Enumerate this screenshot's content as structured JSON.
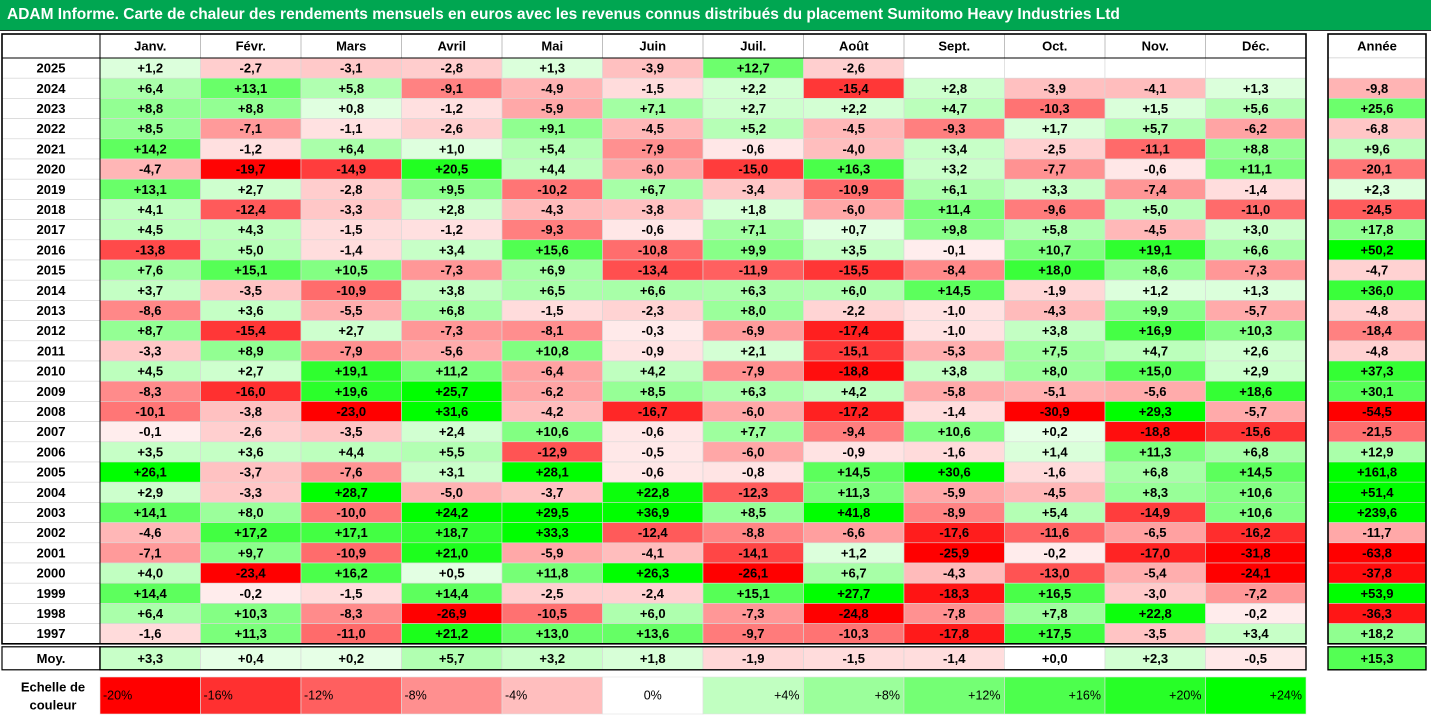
{
  "title": "ADAM Informe. Carte de chaleur des rendements mensuels en euros avec les revenus connus distribués du placement Sumitomo Heavy Industries Ltd",
  "colors": {
    "title_bg": "#00a651",
    "title_fg": "#ffffff",
    "negative_strong": "#ff0000",
    "positive_strong": "#00ff00",
    "neutral": "#ffffff"
  },
  "chart_data": {
    "type": "heatmap",
    "months": [
      "Janv.",
      "Févr.",
      "Mars",
      "Avril",
      "Mai",
      "Juin",
      "Juil.",
      "Août",
      "Sept.",
      "Oct.",
      "Nov.",
      "Déc."
    ],
    "year_header": "Année",
    "rows": [
      {
        "year": "2025",
        "values": [
          "+1,2",
          "-2,7",
          "-3,1",
          "-2,8",
          "+1,3",
          "-3,9",
          "+12,7",
          "-2,6",
          "",
          "",
          "",
          ""
        ],
        "annual": ""
      },
      {
        "year": "2024",
        "values": [
          "+6,4",
          "+13,1",
          "+5,8",
          "-9,1",
          "-4,9",
          "-1,5",
          "+2,2",
          "-15,4",
          "+2,8",
          "-3,9",
          "-4,1",
          "+1,3"
        ],
        "annual": "-9,8"
      },
      {
        "year": "2023",
        "values": [
          "+8,8",
          "+8,8",
          "+0,8",
          "-1,2",
          "-5,9",
          "+7,1",
          "+2,7",
          "+2,2",
          "+4,7",
          "-10,3",
          "+1,5",
          "+5,6"
        ],
        "annual": "+25,6"
      },
      {
        "year": "2022",
        "values": [
          "+8,5",
          "-7,1",
          "-1,1",
          "-2,6",
          "+9,1",
          "-4,5",
          "+5,2",
          "-4,5",
          "-9,3",
          "+1,7",
          "+5,7",
          "-6,2"
        ],
        "annual": "-6,8"
      },
      {
        "year": "2021",
        "values": [
          "+14,2",
          "-1,2",
          "+6,4",
          "+1,0",
          "+5,4",
          "-7,9",
          "-0,6",
          "-4,0",
          "+3,4",
          "-2,5",
          "-11,1",
          "+8,8"
        ],
        "annual": "+9,6"
      },
      {
        "year": "2020",
        "values": [
          "-4,7",
          "-19,7",
          "-14,9",
          "+20,5",
          "+4,4",
          "-6,0",
          "-15,0",
          "+16,3",
          "+3,2",
          "-7,7",
          "-0,6",
          "+11,1"
        ],
        "annual": "-20,1"
      },
      {
        "year": "2019",
        "values": [
          "+13,1",
          "+2,7",
          "-2,8",
          "+9,5",
          "-10,2",
          "+6,7",
          "-3,4",
          "-10,9",
          "+6,1",
          "+3,3",
          "-7,4",
          "-1,4"
        ],
        "annual": "+2,3"
      },
      {
        "year": "2018",
        "values": [
          "+4,1",
          "-12,4",
          "-3,3",
          "+2,8",
          "-4,3",
          "-3,8",
          "+1,8",
          "-6,0",
          "+11,4",
          "-9,6",
          "+5,0",
          "-11,0"
        ],
        "annual": "-24,5"
      },
      {
        "year": "2017",
        "values": [
          "+4,5",
          "+4,3",
          "-1,5",
          "-1,2",
          "-9,3",
          "-0,6",
          "+7,1",
          "+0,7",
          "+9,8",
          "+5,8",
          "-4,5",
          "+3,0"
        ],
        "annual": "+17,8"
      },
      {
        "year": "2016",
        "values": [
          "-13,8",
          "+5,0",
          "-1,4",
          "+3,4",
          "+15,6",
          "-10,8",
          "+9,9",
          "+3,5",
          "-0,1",
          "+10,7",
          "+19,1",
          "+6,6"
        ],
        "annual": "+50,2"
      },
      {
        "year": "2015",
        "values": [
          "+7,6",
          "+15,1",
          "+10,5",
          "-7,3",
          "+6,9",
          "-13,4",
          "-11,9",
          "-15,5",
          "-8,4",
          "+18,0",
          "+8,6",
          "-7,3"
        ],
        "annual": "-4,7"
      },
      {
        "year": "2014",
        "values": [
          "+3,7",
          "-3,5",
          "-10,9",
          "+3,8",
          "+6,5",
          "+6,6",
          "+6,3",
          "+6,0",
          "+14,5",
          "-1,9",
          "+1,2",
          "+1,3"
        ],
        "annual": "+36,0"
      },
      {
        "year": "2013",
        "values": [
          "-8,6",
          "+3,6",
          "-5,5",
          "+6,8",
          "-1,5",
          "-2,3",
          "+8,0",
          "-2,2",
          "-1,0",
          "-4,3",
          "+9,9",
          "-5,7"
        ],
        "annual": "-4,8"
      },
      {
        "year": "2012",
        "values": [
          "+8,7",
          "-15,4",
          "+2,7",
          "-7,3",
          "-8,1",
          "-0,3",
          "-6,9",
          "-17,4",
          "-1,0",
          "+3,8",
          "+16,9",
          "+10,3"
        ],
        "annual": "-18,4"
      },
      {
        "year": "2011",
        "values": [
          "-3,3",
          "+8,9",
          "-7,9",
          "-5,6",
          "+10,8",
          "-0,9",
          "+2,1",
          "-15,1",
          "-5,3",
          "+7,5",
          "+4,7",
          "+2,6"
        ],
        "annual": "-4,8"
      },
      {
        "year": "2010",
        "values": [
          "+4,5",
          "+2,7",
          "+19,1",
          "+11,2",
          "-6,4",
          "+4,2",
          "-7,9",
          "-18,8",
          "+3,8",
          "+8,0",
          "+15,0",
          "+2,9"
        ],
        "annual": "+37,3"
      },
      {
        "year": "2009",
        "values": [
          "-8,3",
          "-16,0",
          "+19,6",
          "+25,7",
          "-6,2",
          "+8,5",
          "+6,3",
          "+4,2",
          "-5,8",
          "-5,1",
          "-5,6",
          "+18,6"
        ],
        "annual": "+30,1"
      },
      {
        "year": "2008",
        "values": [
          "-10,1",
          "-3,8",
          "-23,0",
          "+31,6",
          "-4,2",
          "-16,7",
          "-6,0",
          "-17,2",
          "-1,4",
          "-30,9",
          "+29,3",
          "-5,7"
        ],
        "annual": "-54,5"
      },
      {
        "year": "2007",
        "values": [
          "-0,1",
          "-2,6",
          "-3,5",
          "+2,4",
          "+10,6",
          "-0,6",
          "+7,7",
          "-9,4",
          "+10,6",
          "+0,2",
          "-18,8",
          "-15,6"
        ],
        "annual": "-21,5"
      },
      {
        "year": "2006",
        "values": [
          "+3,5",
          "+3,6",
          "+4,4",
          "+5,5",
          "-12,9",
          "-0,5",
          "-6,0",
          "-0,9",
          "-1,6",
          "+1,4",
          "+11,3",
          "+6,8"
        ],
        "annual": "+12,9"
      },
      {
        "year": "2005",
        "values": [
          "+26,1",
          "-3,7",
          "-7,6",
          "+3,1",
          "+28,1",
          "-0,6",
          "-0,8",
          "+14,5",
          "+30,6",
          "-1,6",
          "+6,8",
          "+14,5"
        ],
        "annual": "+161,8"
      },
      {
        "year": "2004",
        "values": [
          "+2,9",
          "-3,3",
          "+28,7",
          "-5,0",
          "-3,7",
          "+22,8",
          "-12,3",
          "+11,3",
          "-5,9",
          "-4,5",
          "+8,3",
          "+10,6"
        ],
        "annual": "+51,4"
      },
      {
        "year": "2003",
        "values": [
          "+14,1",
          "+8,0",
          "-10,0",
          "+24,2",
          "+29,5",
          "+36,9",
          "+8,5",
          "+41,8",
          "-8,9",
          "+5,4",
          "-14,9",
          "+10,6"
        ],
        "annual": "+239,6"
      },
      {
        "year": "2002",
        "values": [
          "-4,6",
          "+17,2",
          "+17,1",
          "+18,7",
          "+33,3",
          "-12,4",
          "-8,8",
          "-6,6",
          "-17,6",
          "-11,6",
          "-6,5",
          "-16,2"
        ],
        "annual": "-11,7"
      },
      {
        "year": "2001",
        "values": [
          "-7,1",
          "+9,7",
          "-10,9",
          "+21,0",
          "-5,9",
          "-4,1",
          "-14,1",
          "+1,2",
          "-25,9",
          "-0,2",
          "-17,0",
          "-31,8"
        ],
        "annual": "-63,8"
      },
      {
        "year": "2000",
        "values": [
          "+4,0",
          "-23,4",
          "+16,2",
          "+0,5",
          "+11,8",
          "+26,3",
          "-26,1",
          "+6,7",
          "-4,3",
          "-13,0",
          "-5,4",
          "-24,1"
        ],
        "annual": "-37,8"
      },
      {
        "year": "1999",
        "values": [
          "+14,4",
          "-0,2",
          "-1,5",
          "+14,4",
          "-2,5",
          "-2,4",
          "+15,1",
          "+27,7",
          "-18,3",
          "+16,5",
          "-3,0",
          "-7,2"
        ],
        "annual": "+53,9"
      },
      {
        "year": "1998",
        "values": [
          "+6,4",
          "+10,3",
          "-8,3",
          "-26,9",
          "-10,5",
          "+6,0",
          "-7,3",
          "-24,8",
          "-7,8",
          "+7,8",
          "+22,8",
          "-0,2"
        ],
        "annual": "-36,3"
      },
      {
        "year": "1997",
        "values": [
          "-1,6",
          "+11,3",
          "-11,0",
          "+21,2",
          "+13,0",
          "+13,6",
          "-9,7",
          "-10,3",
          "-17,8",
          "+17,5",
          "-3,5",
          "+3,4"
        ],
        "annual": "+18,2"
      }
    ],
    "average": {
      "label": "Moy.",
      "values": [
        "+3,3",
        "+0,4",
        "+0,2",
        "+5,7",
        "+3,2",
        "+1,8",
        "-1,9",
        "-1,5",
        "-1,4",
        "+0,0",
        "+2,3",
        "-0,5"
      ],
      "annual": "+15,3"
    },
    "scale": {
      "label_line1": "Echelle de",
      "label_line2": "couleur",
      "steps": [
        {
          "label": "-20%",
          "value": -20
        },
        {
          "label": "-16%",
          "value": -16
        },
        {
          "label": "-12%",
          "value": -12
        },
        {
          "label": "-8%",
          "value": -8
        },
        {
          "label": "-4%",
          "value": -4
        },
        {
          "label": "0%",
          "value": 0
        },
        {
          "label": "+4%",
          "value": 4
        },
        {
          "label": "+8%",
          "value": 8
        },
        {
          "label": "+12%",
          "value": 12
        },
        {
          "label": "+16%",
          "value": 16
        },
        {
          "label": "+20%",
          "value": 20
        },
        {
          "label": "+24%",
          "value": 24
        }
      ]
    }
  }
}
